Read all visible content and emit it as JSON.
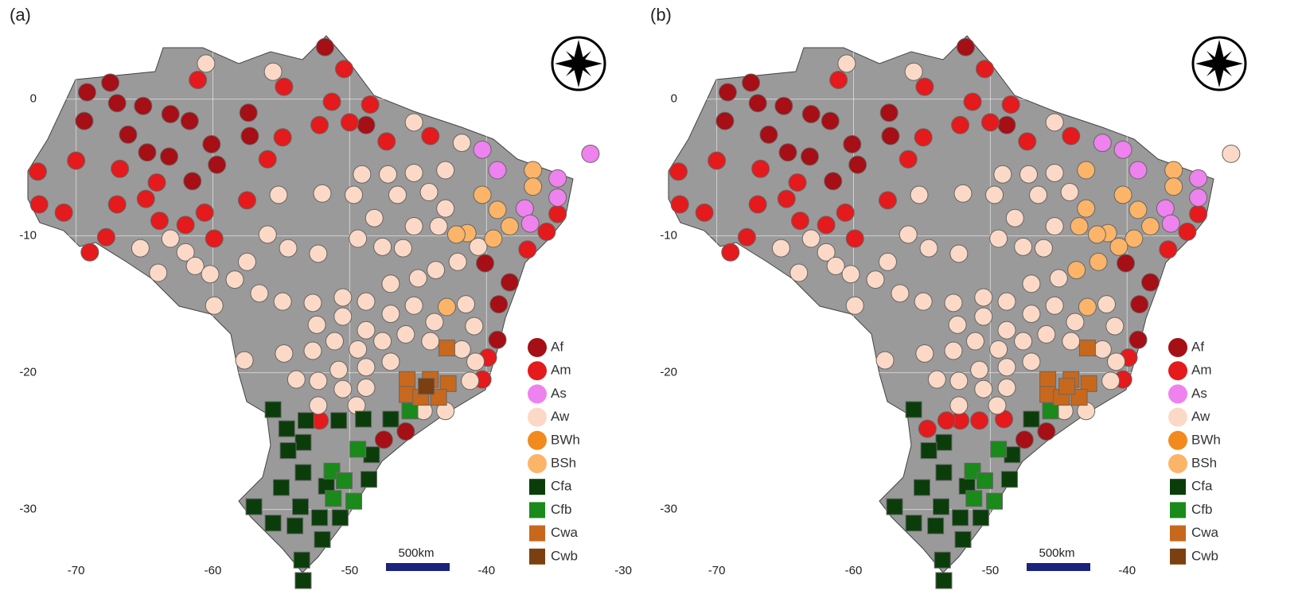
{
  "chart_data": [
    {
      "type": "scatter",
      "title": "(a)",
      "scalebar": "500km",
      "xlim": [
        -74.4,
        -29.6
      ],
      "ylim": [
        -35.2,
        5.5
      ],
      "xticks": [
        -70,
        -60,
        -50,
        -40,
        -30
      ],
      "yticks": [
        0,
        -10,
        -20,
        -30
      ],
      "grid": true,
      "series": [
        {
          "name": "Af",
          "color": "#a50f15",
          "marker": "circle",
          "x": [
            -69.2,
            -67.5,
            -69.4,
            -67.0,
            -66.2,
            -65.1,
            -64.8,
            -63.1,
            -63.2,
            -61.7,
            -61.5,
            -60.1,
            -59.7,
            -57.4,
            -57.3,
            -51.8,
            -48.8,
            -40.1,
            -38.3,
            -39.1,
            -39.2,
            -45.9,
            -47.5
          ],
          "y": [
            0.5,
            1.2,
            -1.6,
            -0.3,
            -2.6,
            -0.5,
            -3.9,
            -1.1,
            -4.2,
            -1.6,
            -6.0,
            -3.3,
            -4.8,
            -1.0,
            -2.7,
            3.8,
            -1.9,
            -12.0,
            -13.4,
            -15.0,
            -17.6,
            -24.3,
            -24.9
          ]
        },
        {
          "name": "Am",
          "color": "#e41a1c",
          "marker": "circle",
          "x": [
            -61.1,
            -60.6,
            -72.8,
            -70.0,
            -72.7,
            -70.9,
            -67.0,
            -64.9,
            -63.9,
            -62.0,
            -66.8,
            -64.1,
            -59.9,
            -69.0,
            -67.8,
            -57.5,
            -56.0,
            -54.8,
            -54.9,
            -52.2,
            -50.4,
            -51.3,
            -50.0,
            -48.5,
            -47.3,
            -44.1,
            -34.8,
            -35.6,
            -37.0,
            -39.9,
            -40.3,
            -52.2
          ],
          "y": [
            1.4,
            -8.3,
            -5.3,
            -4.5,
            -7.7,
            -8.3,
            -7.7,
            -7.3,
            -8.9,
            -9.2,
            -5.1,
            -6.1,
            -10.2,
            -11.2,
            -10.1,
            -7.4,
            -4.4,
            0.9,
            -2.8,
            -1.9,
            2.2,
            -0.2,
            -1.7,
            -0.4,
            -3.1,
            -2.7,
            -8.4,
            -9.7,
            -11.0,
            -18.9,
            -20.5,
            -23.5
          ]
        },
        {
          "name": "As",
          "color": "#ee82ee",
          "marker": "circle",
          "x": [
            -40.3,
            -39.2,
            -32.4,
            -34.8,
            -34.8,
            -37.2,
            -36.8
          ],
          "y": [
            -3.7,
            -5.2,
            -4.0,
            -5.8,
            -7.2,
            -8.0,
            -9.1
          ]
        },
        {
          "name": "Aw",
          "color": "#fcd9c6",
          "marker": "circle",
          "x": [
            -60.5,
            -55.6,
            -45.3,
            -41.8,
            -43.0,
            -45.3,
            -49.1,
            -47.2,
            -44.2,
            -55.2,
            -52.0,
            -49.7,
            -46.5,
            -48.2,
            -49.4,
            -43.0,
            -45.3,
            -43.5,
            -46.1,
            -47.6,
            -52.3,
            -54.5,
            -56.0,
            -57.5,
            -58.4,
            -65.3,
            -63.1,
            -62.0,
            -61.3,
            -60.2,
            -64.0,
            -56.6,
            -59.9,
            -54.9,
            -52.7,
            -50.5,
            -48.8,
            -47.0,
            -45.0,
            -43.7,
            -42.1,
            -40.6,
            -52.4,
            -50.5,
            -48.8,
            -47.0,
            -45.3,
            -43.8,
            -41.5,
            -40.9,
            -51.1,
            -49.4,
            -47.6,
            -45.9,
            -44.1,
            -41.8,
            -54.8,
            -52.7,
            -50.8,
            -48.8,
            -47.0,
            -40.8,
            -57.7,
            -53.9,
            -52.3,
            -50.5,
            -48.8,
            -52.3,
            -49.5,
            -44.6,
            -43.0,
            -41.2
          ],
          "y": [
            2.6,
            2.0,
            -1.7,
            -3.2,
            -5.2,
            -5.4,
            -5.5,
            -5.5,
            -6.8,
            -7.0,
            -6.9,
            -7.0,
            -7.0,
            -8.7,
            -10.2,
            -8.0,
            -9.3,
            -9.3,
            -10.9,
            -10.8,
            -11.3,
            -10.9,
            -9.9,
            -11.9,
            -13.2,
            -10.9,
            -10.2,
            -11.2,
            -12.2,
            -12.8,
            -12.7,
            -14.2,
            -15.1,
            -14.8,
            -14.9,
            -14.5,
            -14.8,
            -13.5,
            -13.1,
            -12.5,
            -11.9,
            -10.8,
            -16.5,
            -15.9,
            -16.9,
            -15.7,
            -15.1,
            -16.3,
            -15.0,
            -16.6,
            -17.7,
            -18.3,
            -17.7,
            -17.2,
            -17.7,
            -18.3,
            -18.6,
            -18.4,
            -19.8,
            -19.6,
            -19.2,
            -19.2,
            -19.1,
            -20.5,
            -20.6,
            -21.2,
            -21.1,
            -22.4,
            -22.4,
            -22.8,
            -22.8,
            -20.6
          ]
        },
        {
          "name": "BWh",
          "color": "#f28a1e",
          "marker": "circle",
          "x": [],
          "y": []
        },
        {
          "name": "BSh",
          "color": "#fbb468",
          "marker": "circle",
          "x": [
            -36.6,
            -36.6,
            -40.3,
            -39.2,
            -41.4,
            -42.2,
            -38.3,
            -39.5,
            -42.9
          ],
          "y": [
            -5.2,
            -6.4,
            -7.0,
            -8.1,
            -9.8,
            -9.9,
            -9.3,
            -10.2,
            -15.2
          ]
        },
        {
          "name": "Cfa",
          "color": "#0b3d0b",
          "marker": "square",
          "x": [
            -55.6,
            -54.6,
            -53.4,
            -54.5,
            -53.2,
            -50.8,
            -49.0,
            -47.0,
            -48.4,
            -53.4,
            -55.0,
            -53.6,
            -51.7,
            -48.6,
            -57.0,
            -55.6,
            -54.0,
            -52.2,
            -50.7,
            -52.0,
            -53.5,
            -53.4
          ],
          "y": [
            -22.7,
            -24.1,
            -25.1,
            -25.7,
            -23.5,
            -23.5,
            -23.4,
            -23.4,
            -26.0,
            -27.3,
            -28.4,
            -29.8,
            -28.3,
            -27.8,
            -29.8,
            -31.0,
            -31.2,
            -30.6,
            -30.6,
            -32.2,
            -33.7,
            -35.2
          ]
        },
        {
          "name": "Cfb",
          "color": "#1a8a1a",
          "marker": "square",
          "x": [
            -45.6,
            -51.3,
            -49.4,
            -50.4,
            -51.2,
            -49.7
          ],
          "y": [
            -22.8,
            -27.2,
            -25.6,
            -27.9,
            -29.2,
            -29.4
          ]
        },
        {
          "name": "Cwa",
          "color": "#c8681c",
          "marker": "square",
          "x": [
            -42.9,
            -45.8,
            -44.1,
            -42.8,
            -45.8,
            -44.8,
            -43.5
          ],
          "y": [
            -18.2,
            -20.5,
            -20.5,
            -20.8,
            -21.6,
            -21.8,
            -21.8
          ]
        },
        {
          "name": "Cwb",
          "color": "#7b3f10",
          "marker": "square",
          "x": [
            -44.4
          ],
          "y": [
            -21.0
          ]
        }
      ]
    },
    {
      "type": "scatter",
      "title": "(b)",
      "scalebar": "500km",
      "xlim": [
        -74.4,
        -29.6
      ],
      "ylim": [
        -35.2,
        5.5
      ],
      "xticks": [
        -70,
        -60,
        -50,
        -40
      ],
      "yticks": [
        0,
        -10,
        -20,
        -30
      ],
      "grid": true,
      "series": [
        {
          "name": "Af",
          "color": "#a50f15",
          "marker": "circle",
          "x": [
            -69.2,
            -67.5,
            -69.4,
            -67.0,
            -66.2,
            -65.1,
            -64.8,
            -63.1,
            -63.2,
            -61.7,
            -61.5,
            -60.1,
            -59.7,
            -57.4,
            -57.3,
            -51.8,
            -48.8,
            -40.1,
            -38.3,
            -39.1,
            -39.2,
            -45.9,
            -47.5
          ],
          "y": [
            0.5,
            1.2,
            -1.6,
            -0.3,
            -2.6,
            -0.5,
            -3.9,
            -1.1,
            -4.2,
            -1.6,
            -6.0,
            -3.3,
            -4.8,
            -1.0,
            -2.7,
            3.8,
            -1.9,
            -12.0,
            -13.4,
            -15.0,
            -17.6,
            -24.3,
            -24.9
          ]
        },
        {
          "name": "Am",
          "color": "#e41a1c",
          "marker": "circle",
          "x": [
            -61.1,
            -60.6,
            -72.8,
            -70.0,
            -72.7,
            -70.9,
            -67.0,
            -64.9,
            -63.9,
            -62.0,
            -66.8,
            -64.1,
            -59.9,
            -69.0,
            -67.8,
            -57.5,
            -56.0,
            -54.8,
            -54.9,
            -52.2,
            -50.4,
            -51.3,
            -50.0,
            -48.5,
            -47.3,
            -44.1,
            -34.8,
            -35.6,
            -37.0,
            -39.9,
            -40.3,
            -52.2,
            -54.6,
            -53.2,
            -50.8,
            -49.0
          ],
          "y": [
            1.4,
            -8.3,
            -5.3,
            -4.5,
            -7.7,
            -8.3,
            -7.7,
            -7.3,
            -8.9,
            -9.2,
            -5.1,
            -6.1,
            -10.2,
            -11.2,
            -10.1,
            -7.4,
            -4.4,
            0.9,
            -2.8,
            -1.9,
            2.2,
            -0.2,
            -1.7,
            -0.4,
            -3.1,
            -2.7,
            -8.4,
            -9.7,
            -11.0,
            -18.9,
            -20.5,
            -23.5,
            -24.1,
            -23.5,
            -23.5,
            -23.4
          ]
        },
        {
          "name": "As",
          "color": "#ee82ee",
          "marker": "circle",
          "x": [
            -40.3,
            -39.2,
            -34.8,
            -34.8,
            -37.2,
            -36.8,
            -41.8
          ],
          "y": [
            -3.7,
            -5.2,
            -5.8,
            -7.2,
            -8.0,
            -9.1,
            -3.2
          ]
        },
        {
          "name": "Aw",
          "color": "#fcd9c6",
          "marker": "circle",
          "x": [
            -60.5,
            -55.6,
            -45.3,
            -45.3,
            -49.1,
            -47.2,
            -44.2,
            -55.2,
            -52.0,
            -49.7,
            -46.5,
            -48.2,
            -49.4,
            -45.3,
            -46.1,
            -47.6,
            -52.3,
            -54.5,
            -56.0,
            -57.5,
            -58.4,
            -65.3,
            -63.1,
            -62.0,
            -61.3,
            -60.2,
            -64.0,
            -56.6,
            -59.9,
            -54.9,
            -52.7,
            -50.5,
            -48.8,
            -47.0,
            -45.0,
            -52.4,
            -50.5,
            -48.8,
            -47.0,
            -45.3,
            -43.8,
            -41.5,
            -40.9,
            -51.1,
            -49.4,
            -47.6,
            -45.9,
            -44.1,
            -41.8,
            -54.8,
            -52.7,
            -50.8,
            -48.8,
            -47.0,
            -40.8,
            -57.7,
            -53.9,
            -52.3,
            -50.5,
            -48.8,
            -52.3,
            -49.5,
            -44.6,
            -43.0,
            -41.2,
            -32.4
          ],
          "y": [
            2.6,
            2.0,
            -1.7,
            -5.4,
            -5.5,
            -5.5,
            -6.8,
            -7.0,
            -6.9,
            -7.0,
            -7.0,
            -8.7,
            -10.2,
            -9.3,
            -10.9,
            -10.8,
            -11.3,
            -10.9,
            -9.9,
            -11.9,
            -13.2,
            -10.9,
            -10.2,
            -11.2,
            -12.2,
            -12.8,
            -12.7,
            -14.2,
            -15.1,
            -14.8,
            -14.9,
            -14.5,
            -14.8,
            -13.5,
            -13.1,
            -16.5,
            -15.9,
            -16.9,
            -15.7,
            -15.1,
            -16.3,
            -15.0,
            -16.6,
            -17.7,
            -18.3,
            -17.7,
            -17.2,
            -17.7,
            -18.3,
            -18.6,
            -18.4,
            -19.8,
            -19.6,
            -19.2,
            -19.2,
            -19.1,
            -20.5,
            -20.6,
            -21.2,
            -21.1,
            -22.4,
            -22.4,
            -22.8,
            -22.8,
            -20.6,
            -4.0
          ]
        },
        {
          "name": "BWh",
          "color": "#f28a1e",
          "marker": "circle",
          "x": [],
          "y": []
        },
        {
          "name": "BSh",
          "color": "#fbb468",
          "marker": "circle",
          "x": [
            -36.6,
            -36.6,
            -40.3,
            -39.2,
            -41.4,
            -42.2,
            -38.3,
            -39.5,
            -42.9,
            -43.0,
            -43.0,
            -43.5,
            -43.7,
            -42.1,
            -40.6
          ],
          "y": [
            -5.2,
            -6.4,
            -7.0,
            -8.1,
            -9.8,
            -9.9,
            -9.3,
            -10.2,
            -15.2,
            -5.2,
            -8.0,
            -9.3,
            -12.5,
            -11.9,
            -10.8
          ]
        },
        {
          "name": "Cfa",
          "color": "#0b3d0b",
          "marker": "square",
          "x": [
            -55.6,
            -53.4,
            -54.5,
            -47.0,
            -48.4,
            -53.4,
            -55.0,
            -53.6,
            -51.7,
            -48.6,
            -57.0,
            -55.6,
            -54.0,
            -52.2,
            -50.7,
            -52.0,
            -53.5,
            -53.4
          ],
          "y": [
            -22.7,
            -25.1,
            -25.7,
            -23.4,
            -26.0,
            -27.3,
            -28.4,
            -29.8,
            -28.3,
            -27.8,
            -29.8,
            -31.0,
            -31.2,
            -30.6,
            -30.6,
            -32.2,
            -33.7,
            -35.2
          ]
        },
        {
          "name": "Cfb",
          "color": "#1a8a1a",
          "marker": "square",
          "x": [
            -45.6,
            -51.3,
            -49.4,
            -50.4,
            -51.2,
            -49.7
          ],
          "y": [
            -22.8,
            -27.2,
            -25.6,
            -27.9,
            -29.2,
            -29.4
          ]
        },
        {
          "name": "Cwa",
          "color": "#c8681c",
          "marker": "square",
          "x": [
            -42.9,
            -45.8,
            -44.1,
            -42.8,
            -45.8,
            -44.8,
            -43.5,
            -44.4
          ],
          "y": [
            -18.2,
            -20.5,
            -20.5,
            -20.8,
            -21.6,
            -21.8,
            -21.8,
            -21.0
          ]
        },
        {
          "name": "Cwb",
          "color": "#7b3f10",
          "marker": "square",
          "x": [],
          "y": []
        }
      ]
    }
  ]
}
